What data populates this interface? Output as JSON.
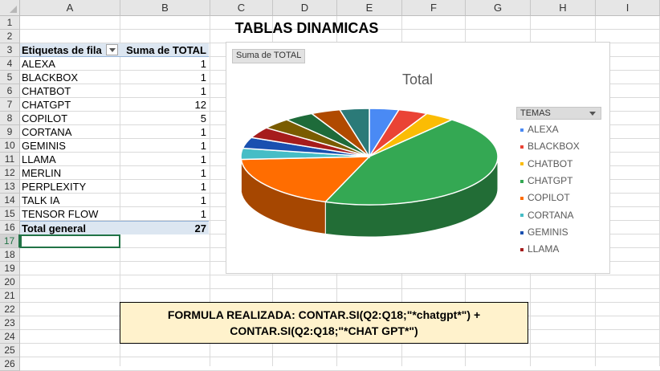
{
  "columns": [
    "A",
    "B",
    "C",
    "D",
    "E",
    "F",
    "G",
    "H",
    "I"
  ],
  "rows": [
    "1",
    "2",
    "3",
    "4",
    "5",
    "6",
    "7",
    "8",
    "9",
    "10",
    "11",
    "12",
    "13",
    "14",
    "15",
    "16",
    "17",
    "18",
    "19",
    "20",
    "21",
    "22",
    "23",
    "24",
    "25",
    "26"
  ],
  "sheet_title": "TABLAS DINAMICAS",
  "pivot": {
    "header_label": "Etiquetas de fila",
    "header_value": "Suma de TOTAL",
    "rows": [
      {
        "label": "ALEXA",
        "value": "1"
      },
      {
        "label": "BLACKBOX",
        "value": "1"
      },
      {
        "label": "CHATBOT",
        "value": "1"
      },
      {
        "label": "CHATGPT",
        "value": "12"
      },
      {
        "label": "COPILOT",
        "value": "5"
      },
      {
        "label": "CORTANA",
        "value": "1"
      },
      {
        "label": "GEMINIS",
        "value": "1"
      },
      {
        "label": "LLAMA",
        "value": "1"
      },
      {
        "label": "MERLIN",
        "value": "1"
      },
      {
        "label": "PERPLEXITY",
        "value": "1"
      },
      {
        "label": "TALK IA",
        "value": "1"
      },
      {
        "label": "TENSOR FLOW",
        "value": "1"
      }
    ],
    "total_label": "Total general",
    "total_value": "27"
  },
  "chart": {
    "field_button": "Suma de TOTAL",
    "legend_header": "TEMAS",
    "legend": [
      {
        "name": "ALEXA",
        "color": "#4a8af4"
      },
      {
        "name": "BLACKBOX",
        "color": "#ea4335"
      },
      {
        "name": "CHATBOT",
        "color": "#fbbc04"
      },
      {
        "name": "CHATGPT",
        "color": "#34a853"
      },
      {
        "name": "COPILOT",
        "color": "#ff6d01"
      },
      {
        "name": "CORTANA",
        "color": "#46bdc6"
      },
      {
        "name": "GEMINIS",
        "color": "#1a50b0"
      },
      {
        "name": "LLAMA",
        "color": "#a61c1c"
      }
    ]
  },
  "chart_data": {
    "type": "pie",
    "title": "Total",
    "categories": [
      "ALEXA",
      "BLACKBOX",
      "CHATBOT",
      "CHATGPT",
      "COPILOT",
      "CORTANA",
      "GEMINIS",
      "LLAMA",
      "MERLIN",
      "PERPLEXITY",
      "TALK IA",
      "TENSOR FLOW"
    ],
    "values": [
      1,
      1,
      1,
      12,
      5,
      1,
      1,
      1,
      1,
      1,
      1,
      1
    ],
    "colors": [
      "#4a8af4",
      "#ea4335",
      "#fbbc04",
      "#34a853",
      "#ff6d01",
      "#46bdc6",
      "#1a50b0",
      "#a61c1c",
      "#7a5c00",
      "#1e6b3a",
      "#b04a00",
      "#2b7a78"
    ],
    "legend": "right"
  },
  "formula": {
    "line1": "FORMULA REALIZADA:  CONTAR.SI(Q2:Q18;\"*chatgpt*\") +",
    "line2": "CONTAR.SI(Q2:Q18;\"*CHAT GPT*\")"
  }
}
